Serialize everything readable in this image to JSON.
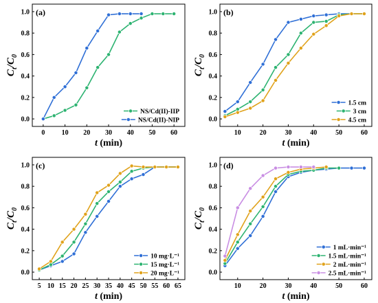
{
  "chart_data": [
    {
      "type": "line",
      "tag": "(a)",
      "xlabel": "t (min)",
      "ylabel": "Ct/C0",
      "xlim": [
        -5,
        65
      ],
      "ylim": [
        -0.07,
        1.07
      ],
      "xticks": [
        0,
        10,
        20,
        30,
        40,
        50,
        60
      ],
      "yticks": [
        0.0,
        0.2,
        0.4,
        0.6,
        0.8,
        1.0
      ],
      "legend": "bottom-right",
      "series": [
        {
          "name": "NS/Cd(II)-IIP",
          "color": "#2db371",
          "x": [
            0,
            5,
            10,
            15,
            20,
            25,
            30,
            35,
            40,
            45,
            50,
            55,
            60
          ],
          "y": [
            0.0,
            0.03,
            0.08,
            0.13,
            0.29,
            0.48,
            0.6,
            0.81,
            0.89,
            0.94,
            0.98,
            0.98,
            0.98
          ]
        },
        {
          "name": "NS/Cd(II)-NIP",
          "color": "#2f6fd6",
          "x": [
            0,
            5,
            10,
            15,
            20,
            25,
            30,
            35,
            40,
            45
          ],
          "y": [
            0.0,
            0.2,
            0.3,
            0.43,
            0.66,
            0.82,
            0.97,
            0.98,
            0.98,
            0.98
          ]
        }
      ]
    },
    {
      "type": "line",
      "tag": "(b)",
      "xlabel": "t (min)",
      "ylabel": "Ct/C0",
      "xlim": [
        3,
        63
      ],
      "ylim": [
        -0.07,
        1.07
      ],
      "xticks": [
        10,
        20,
        30,
        40,
        50,
        60
      ],
      "yticks": [
        0.0,
        0.2,
        0.4,
        0.6,
        0.8,
        1.0
      ],
      "legend": "bottom-right",
      "series": [
        {
          "name": "1.5 cm",
          "color": "#2f6fd6",
          "x": [
            5,
            10,
            15,
            20,
            25,
            30,
            35,
            40,
            45,
            50,
            55
          ],
          "y": [
            0.07,
            0.16,
            0.34,
            0.51,
            0.74,
            0.9,
            0.93,
            0.96,
            0.97,
            0.98,
            0.98
          ]
        },
        {
          "name": "3 cm",
          "color": "#2db371",
          "x": [
            5,
            10,
            15,
            20,
            25,
            30,
            35,
            40,
            45,
            50,
            55,
            60
          ],
          "y": [
            0.03,
            0.09,
            0.16,
            0.27,
            0.48,
            0.6,
            0.8,
            0.9,
            0.91,
            0.97,
            0.98,
            0.98
          ]
        },
        {
          "name": "4.5 cm",
          "color": "#e0a21b",
          "x": [
            5,
            10,
            15,
            20,
            25,
            30,
            35,
            40,
            45,
            50,
            55,
            60
          ],
          "y": [
            0.02,
            0.06,
            0.1,
            0.17,
            0.36,
            0.52,
            0.66,
            0.79,
            0.87,
            0.96,
            0.98,
            0.98
          ]
        }
      ]
    },
    {
      "type": "line",
      "tag": "(c)",
      "xlabel": "t (min)",
      "ylabel": "Ct/C0",
      "xlim": [
        2,
        68
      ],
      "ylim": [
        -0.07,
        1.07
      ],
      "xticks": [
        5,
        10,
        15,
        20,
        25,
        30,
        35,
        40,
        45,
        50,
        55,
        60,
        65
      ],
      "yticks": [
        0.0,
        0.2,
        0.4,
        0.6,
        0.8,
        1.0
      ],
      "legend": "bottom-right",
      "series": [
        {
          "name": "10 mg·L⁻¹",
          "color": "#2f6fd6",
          "x": [
            5,
            10,
            15,
            20,
            25,
            30,
            35,
            40,
            45,
            50,
            55,
            60,
            65
          ],
          "y": [
            0.02,
            0.06,
            0.1,
            0.17,
            0.37,
            0.52,
            0.66,
            0.8,
            0.87,
            0.91,
            0.98,
            0.98,
            0.98
          ]
        },
        {
          "name": "15 mg·L⁻¹",
          "color": "#2db371",
          "x": [
            5,
            10,
            15,
            20,
            25,
            30,
            35,
            40,
            45,
            50,
            55,
            60,
            65
          ],
          "y": [
            0.02,
            0.07,
            0.15,
            0.28,
            0.45,
            0.64,
            0.75,
            0.84,
            0.94,
            0.97,
            0.98,
            0.98,
            0.98
          ]
        },
        {
          "name": "20 mg·L⁻¹",
          "color": "#e0a21b",
          "x": [
            5,
            10,
            15,
            20,
            25,
            30,
            35,
            40,
            45,
            50,
            55,
            60,
            65
          ],
          "y": [
            0.03,
            0.1,
            0.28,
            0.4,
            0.54,
            0.74,
            0.81,
            0.92,
            0.99,
            0.98,
            0.98,
            0.98,
            0.98
          ]
        }
      ]
    },
    {
      "type": "line",
      "tag": "(d)",
      "xlabel": "t (min)",
      "ylabel": "Ct/C0",
      "xlim": [
        3,
        63
      ],
      "ylim": [
        -0.07,
        1.07
      ],
      "xticks": [
        10,
        20,
        30,
        40,
        50,
        60
      ],
      "yticks": [
        0.0,
        0.2,
        0.4,
        0.6,
        0.8,
        1.0
      ],
      "legend": "bottom-right",
      "series": [
        {
          "name": "1 mL·min⁻¹",
          "color": "#2f6fd6",
          "x": [
            5,
            10,
            15,
            20,
            25,
            30,
            35,
            40,
            45,
            50,
            55,
            60
          ],
          "y": [
            0.06,
            0.22,
            0.34,
            0.52,
            0.75,
            0.89,
            0.93,
            0.95,
            0.96,
            0.97,
            0.97,
            0.97
          ]
        },
        {
          "name": "1.5 mL·min⁻¹",
          "color": "#2db371",
          "x": [
            5,
            10,
            15,
            20,
            25,
            30,
            35,
            40,
            45,
            50
          ],
          "y": [
            0.08,
            0.28,
            0.45,
            0.61,
            0.8,
            0.91,
            0.94,
            0.95,
            0.97,
            0.97
          ]
        },
        {
          "name": "2 mL·min⁻¹",
          "color": "#e0a21b",
          "x": [
            5,
            10,
            15,
            20,
            25,
            30,
            35,
            40,
            45
          ],
          "y": [
            0.11,
            0.35,
            0.57,
            0.7,
            0.87,
            0.93,
            0.96,
            0.97,
            0.98
          ]
        },
        {
          "name": "2.5 mL·min⁻¹",
          "color": "#c98ee3",
          "x": [
            5,
            10,
            15,
            20,
            25,
            30,
            35,
            40
          ],
          "y": [
            0.15,
            0.6,
            0.78,
            0.9,
            0.97,
            0.98,
            0.98,
            0.98
          ]
        }
      ]
    }
  ]
}
